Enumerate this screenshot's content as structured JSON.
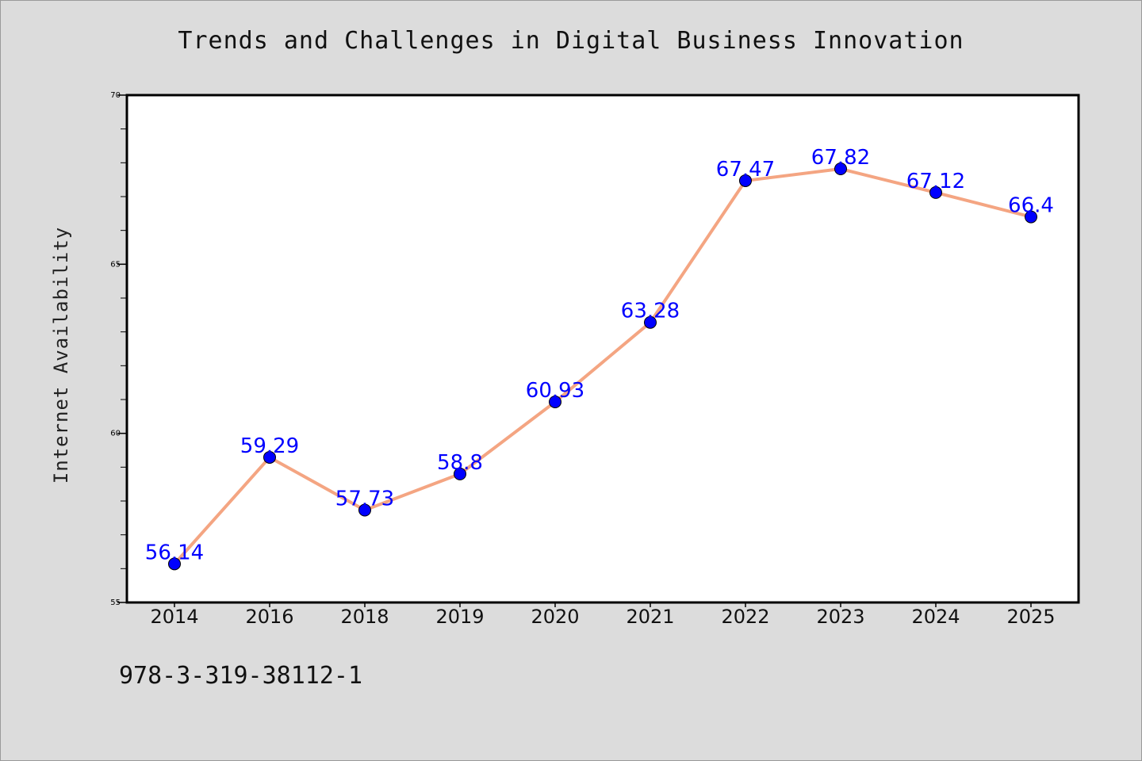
{
  "title": "Trends and Challenges in Digital Business Innovation",
  "ylabel": "Internet Availability",
  "footer_code": "978-3-319-38112-1",
  "colors": {
    "background": "#dcdcdc",
    "plot_area": "#ffffff",
    "line": "#f4a582",
    "marker": "#0000ff",
    "data_label": "#0000ff"
  },
  "chart_data": {
    "type": "line",
    "title": "Trends and Challenges in Digital Business Innovation",
    "xlabel": "",
    "ylabel": "Internet Availability",
    "categories": [
      "2014",
      "2016",
      "2018",
      "2019",
      "2020",
      "2021",
      "2022",
      "2023",
      "2024",
      "2025"
    ],
    "series": [
      {
        "values": [
          56.14,
          59.29,
          57.73,
          58.8,
          60.93,
          63.28,
          67.47,
          67.82,
          67.12,
          66.4
        ],
        "labels": [
          "56.14",
          "59.29",
          "57.73",
          "58.8",
          "60.93",
          "63.28",
          "67.47",
          "67.82",
          "67.12",
          "66.4"
        ]
      }
    ],
    "ylim": [
      55,
      70
    ],
    "yticks": [
      55,
      60,
      65,
      70
    ],
    "ytick_labels": [
      "55",
      "60",
      "65",
      "70"
    ],
    "grid": false,
    "legend": "none"
  }
}
